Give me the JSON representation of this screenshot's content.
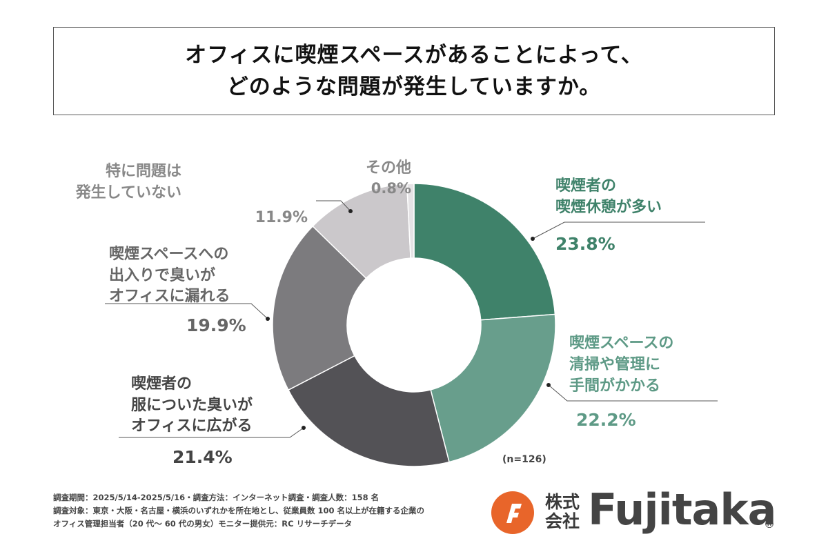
{
  "title": {
    "line1": "オフィスに喫煙スペースがあることによって、",
    "line2": "どのような問題が発生していますか。"
  },
  "chart_data": {
    "type": "pie",
    "donut": true,
    "title": "オフィスに喫煙スペースがあることによって、どのような問題が発生していますか。",
    "sample_size": "(n=126)",
    "slices": [
      {
        "label_lines": [
          "喫煙者の",
          "喫煙休憩が多い"
        ],
        "value": 23.8,
        "value_text": "23.8%",
        "color": "#3f826a"
      },
      {
        "label_lines": [
          "喫煙スペースの",
          "清掃や管理に",
          "手間がかかる"
        ],
        "value": 22.2,
        "value_text": "22.2%",
        "color": "#689e8c"
      },
      {
        "label_lines": [
          "喫煙者の",
          "服についた臭いが",
          "オフィスに広がる"
        ],
        "value": 21.4,
        "value_text": "21.4%",
        "color": "#535256"
      },
      {
        "label_lines": [
          "喫煙スペースへの",
          "出入りで臭いが",
          "オフィスに漏れる"
        ],
        "value": 19.9,
        "value_text": "19.9%",
        "color": "#7c7b7e"
      },
      {
        "label_lines": [
          "特に問題は",
          "発生していない"
        ],
        "value": 11.9,
        "value_text": "11.9%",
        "color": "#cbc8cb"
      },
      {
        "label_lines": [
          "その他"
        ],
        "value": 0.8,
        "value_text": "0.8%",
        "color": "#e5e3e5"
      }
    ],
    "label_colors": [
      "#3f826a",
      "#5e9a86",
      "#444444",
      "#666666",
      "#888888",
      "#888888"
    ]
  },
  "footer": {
    "line1": "調査期間：2025/5/14-2025/5/16・調査方法：インターネット調査・調査人数：158 名",
    "line2": "調査対象：東京・大阪・名古屋・横浜のいずれかを所在地とし、従業員数 100 名以上が在籍する企業の",
    "line3": "オフィス管理担当者（20 代～ 60 代の男女）モニター提供元：RC リサーチデータ"
  },
  "logo": {
    "kabushiki": "株式会社",
    "name": "Fujitaka",
    "registered": "®",
    "brand_color": "#e8652a"
  }
}
